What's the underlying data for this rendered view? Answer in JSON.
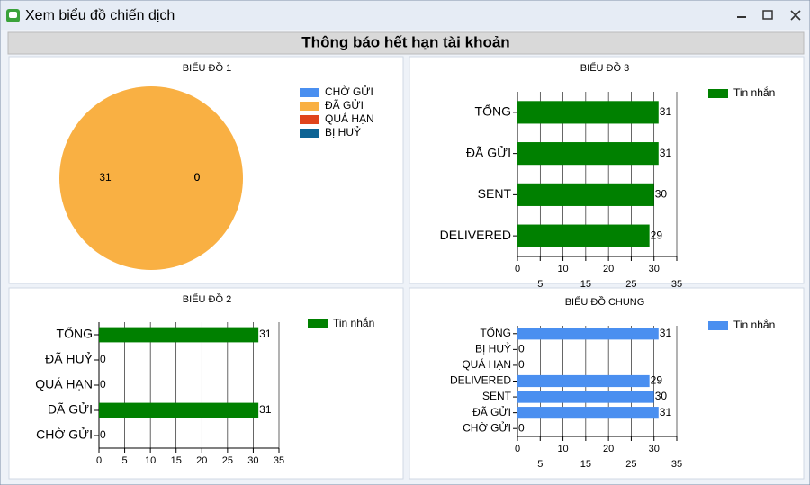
{
  "window": {
    "title": "Xem biểu đồ chiến dịch"
  },
  "header": {
    "title": "Thông báo hết hạn tài khoản"
  },
  "chart_data": [
    {
      "type": "pie",
      "title": "BIỂU ĐỒ 1",
      "categories": [
        "CHỜ GỬI",
        "ĐÃ GỬI",
        "QUÁ HẠN",
        "BỊ HUỶ"
      ],
      "values": [
        0,
        31,
        0,
        0
      ],
      "colors": [
        "#4a8ff0",
        "#f9b043",
        "#e0441c",
        "#0d6394"
      ]
    },
    {
      "type": "hbar",
      "title": "BIỂU ĐỒ 3",
      "categories": [
        "TỔNG",
        "ĐÃ GỬI",
        "SENT",
        "DELIVERED"
      ],
      "series": [
        {
          "name": "Tin nhắn",
          "color": "#008000",
          "values": [
            31,
            31,
            30,
            29
          ]
        }
      ],
      "xlim": [
        0,
        35
      ],
      "xticks": [
        0,
        5,
        10,
        15,
        20,
        25,
        30,
        35
      ],
      "grid": true
    },
    {
      "type": "hbar",
      "title": "BIỂU ĐỒ 2",
      "categories": [
        "TỔNG",
        "ĐÃ HUỶ",
        "QUÁ HẠN",
        "ĐÃ GỬI",
        "CHỜ GỬI"
      ],
      "series": [
        {
          "name": "Tin nhắn",
          "color": "#008000",
          "values": [
            31,
            0,
            0,
            31,
            0
          ]
        }
      ],
      "xlim": [
        0,
        35
      ],
      "xticks": [
        0,
        5,
        10,
        15,
        20,
        25,
        30,
        35
      ],
      "grid": true
    },
    {
      "type": "hbar",
      "title": "BIỂU ĐỒ CHUNG",
      "categories": [
        "TỔNG",
        "BỊ HUỶ",
        "QUÁ HẠN",
        "DELIVERED",
        "SENT",
        "ĐÃ GỬI",
        "CHỜ GỬI"
      ],
      "series": [
        {
          "name": "Tin nhắn",
          "color": "#4a8ff0",
          "values": [
            31,
            0,
            0,
            29,
            30,
            31,
            0
          ]
        }
      ],
      "xlim": [
        0,
        35
      ],
      "xticks": [
        0,
        5,
        10,
        15,
        20,
        25,
        30,
        35
      ],
      "grid": true
    }
  ]
}
